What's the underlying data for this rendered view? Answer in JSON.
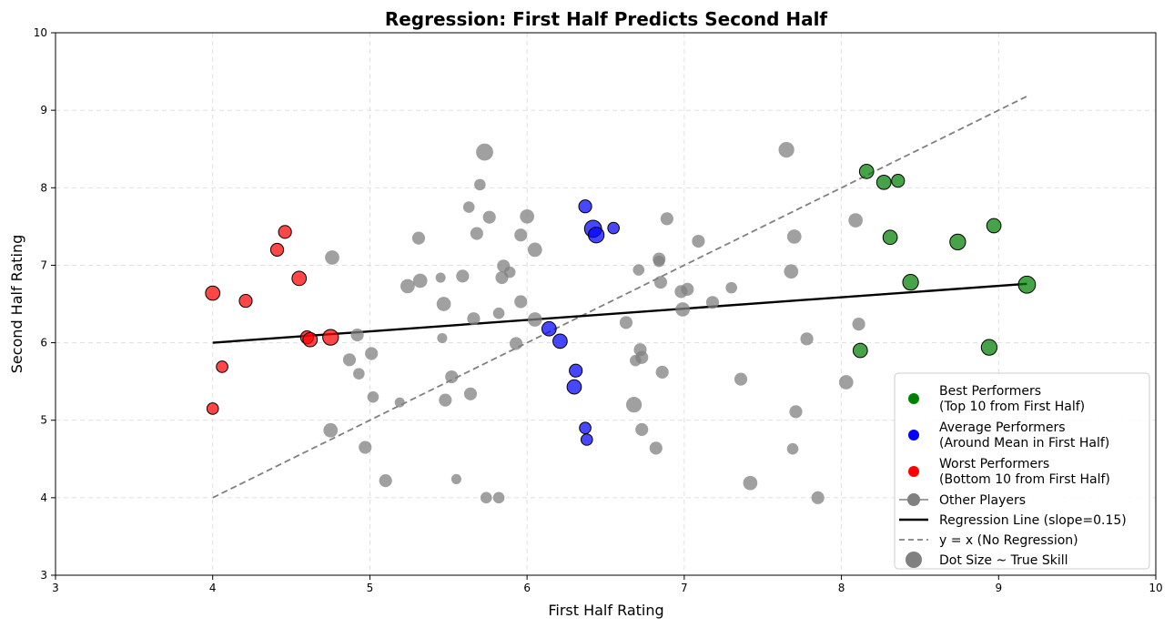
{
  "chart_data": {
    "type": "scatter",
    "title": "Regression: First Half Predicts Second Half",
    "xlabel": "First Half Rating",
    "ylabel": "Second Half Rating",
    "xlim": [
      3,
      10
    ],
    "ylim": [
      3,
      10
    ],
    "xticks": [
      3,
      4,
      5,
      6,
      7,
      8,
      9,
      10
    ],
    "yticks": [
      3,
      4,
      5,
      6,
      7,
      8,
      9,
      10
    ],
    "grid": true,
    "legend_position": "bottom-right",
    "colors": {
      "best": "#008000",
      "average": "#0000ff",
      "worst": "#ff0000",
      "other": "#808080",
      "regression": "#000000",
      "identity": "#808080"
    },
    "series": [
      {
        "name": "Best Performers (Top 10 from First Half)",
        "key": "best",
        "points": [
          {
            "x": 8.16,
            "y": 8.21,
            "skill": 3
          },
          {
            "x": 8.27,
            "y": 8.07,
            "skill": 3
          },
          {
            "x": 8.36,
            "y": 8.09,
            "skill": 2.5
          },
          {
            "x": 8.31,
            "y": 7.36,
            "skill": 3
          },
          {
            "x": 8.97,
            "y": 7.51,
            "skill": 3
          },
          {
            "x": 8.74,
            "y": 7.3,
            "skill": 3.5
          },
          {
            "x": 8.44,
            "y": 6.78,
            "skill": 3.5
          },
          {
            "x": 9.18,
            "y": 6.75,
            "skill": 4
          },
          {
            "x": 8.12,
            "y": 5.9,
            "skill": 3
          },
          {
            "x": 8.94,
            "y": 5.94,
            "skill": 3.5
          }
        ]
      },
      {
        "name": "Average Performers (Around Mean in First Half)",
        "key": "average",
        "points": [
          {
            "x": 6.37,
            "y": 7.76,
            "skill": 2.5
          },
          {
            "x": 6.42,
            "y": 7.47,
            "skill": 4
          },
          {
            "x": 6.44,
            "y": 7.39,
            "skill": 3.5
          },
          {
            "x": 6.55,
            "y": 7.48,
            "skill": 2
          },
          {
            "x": 6.14,
            "y": 6.18,
            "skill": 3
          },
          {
            "x": 6.21,
            "y": 6.02,
            "skill": 3
          },
          {
            "x": 6.31,
            "y": 5.64,
            "skill": 2.5
          },
          {
            "x": 6.3,
            "y": 5.43,
            "skill": 3
          },
          {
            "x": 6.37,
            "y": 4.9,
            "skill": 2
          },
          {
            "x": 6.38,
            "y": 4.75,
            "skill": 2
          }
        ]
      },
      {
        "name": "Worst Performers (Bottom 10 from First Half)",
        "key": "worst",
        "points": [
          {
            "x": 4.46,
            "y": 7.43,
            "skill": 2.5
          },
          {
            "x": 4.41,
            "y": 7.2,
            "skill": 2.5
          },
          {
            "x": 4.55,
            "y": 6.83,
            "skill": 3
          },
          {
            "x": 4.0,
            "y": 6.64,
            "skill": 3
          },
          {
            "x": 4.21,
            "y": 6.54,
            "skill": 2.5
          },
          {
            "x": 4.6,
            "y": 6.07,
            "skill": 2.5
          },
          {
            "x": 4.62,
            "y": 6.04,
            "skill": 3
          },
          {
            "x": 4.75,
            "y": 6.07,
            "skill": 3.5
          },
          {
            "x": 4.06,
            "y": 5.69,
            "skill": 2
          },
          {
            "x": 4.0,
            "y": 5.15,
            "skill": 2
          }
        ]
      },
      {
        "name": "Other Players",
        "key": "other",
        "points": [
          {
            "x": 5.73,
            "y": 8.46,
            "skill": 4
          },
          {
            "x": 5.7,
            "y": 8.04,
            "skill": 2
          },
          {
            "x": 5.63,
            "y": 7.75,
            "skill": 2
          },
          {
            "x": 5.76,
            "y": 7.62,
            "skill": 2.5
          },
          {
            "x": 6.0,
            "y": 7.63,
            "skill": 3
          },
          {
            "x": 5.68,
            "y": 7.41,
            "skill": 2.5
          },
          {
            "x": 5.96,
            "y": 7.39,
            "skill": 2.5
          },
          {
            "x": 5.31,
            "y": 7.35,
            "skill": 2.5
          },
          {
            "x": 6.05,
            "y": 7.2,
            "skill": 3
          },
          {
            "x": 4.76,
            "y": 7.1,
            "skill": 3
          },
          {
            "x": 5.85,
            "y": 6.99,
            "skill": 2.5
          },
          {
            "x": 5.89,
            "y": 6.91,
            "skill": 2
          },
          {
            "x": 5.59,
            "y": 6.86,
            "skill": 2.5
          },
          {
            "x": 5.45,
            "y": 6.84,
            "skill": 1.5
          },
          {
            "x": 5.84,
            "y": 6.84,
            "skill": 2.5
          },
          {
            "x": 5.32,
            "y": 6.8,
            "skill": 3
          },
          {
            "x": 5.24,
            "y": 6.73,
            "skill": 3
          },
          {
            "x": 5.96,
            "y": 6.53,
            "skill": 2.5
          },
          {
            "x": 5.47,
            "y": 6.5,
            "skill": 3
          },
          {
            "x": 5.82,
            "y": 6.38,
            "skill": 2
          },
          {
            "x": 5.66,
            "y": 6.31,
            "skill": 2.5
          },
          {
            "x": 6.05,
            "y": 6.3,
            "skill": 3
          },
          {
            "x": 4.92,
            "y": 6.1,
            "skill": 2.5
          },
          {
            "x": 5.46,
            "y": 6.06,
            "skill": 1.5
          },
          {
            "x": 5.93,
            "y": 5.99,
            "skill": 2.5
          },
          {
            "x": 5.01,
            "y": 5.86,
            "skill": 2.5
          },
          {
            "x": 4.87,
            "y": 5.78,
            "skill": 2.5
          },
          {
            "x": 4.93,
            "y": 5.6,
            "skill": 2
          },
          {
            "x": 5.52,
            "y": 5.56,
            "skill": 2.5
          },
          {
            "x": 5.64,
            "y": 5.34,
            "skill": 2.5
          },
          {
            "x": 5.02,
            "y": 5.3,
            "skill": 2
          },
          {
            "x": 5.48,
            "y": 5.26,
            "skill": 2.5
          },
          {
            "x": 5.19,
            "y": 5.23,
            "skill": 1.5
          },
          {
            "x": 4.75,
            "y": 4.87,
            "skill": 3
          },
          {
            "x": 4.97,
            "y": 4.65,
            "skill": 2.5
          },
          {
            "x": 5.1,
            "y": 4.22,
            "skill": 2.5
          },
          {
            "x": 5.55,
            "y": 4.24,
            "skill": 1.5
          },
          {
            "x": 5.74,
            "y": 4.0,
            "skill": 2
          },
          {
            "x": 5.82,
            "y": 4.0,
            "skill": 2
          },
          {
            "x": 6.89,
            "y": 7.6,
            "skill": 2.5
          },
          {
            "x": 7.09,
            "y": 7.31,
            "skill": 2.5
          },
          {
            "x": 6.84,
            "y": 7.08,
            "skill": 2.5
          },
          {
            "x": 6.84,
            "y": 7.05,
            "skill": 2
          },
          {
            "x": 6.71,
            "y": 6.94,
            "skill": 2
          },
          {
            "x": 6.85,
            "y": 6.78,
            "skill": 2.5
          },
          {
            "x": 7.02,
            "y": 6.69,
            "skill": 2.5
          },
          {
            "x": 6.98,
            "y": 6.66,
            "skill": 2.5
          },
          {
            "x": 7.3,
            "y": 6.71,
            "skill": 2
          },
          {
            "x": 7.18,
            "y": 6.52,
            "skill": 2.5
          },
          {
            "x": 6.99,
            "y": 6.43,
            "skill": 3
          },
          {
            "x": 6.63,
            "y": 6.26,
            "skill": 2.5
          },
          {
            "x": 6.72,
            "y": 5.91,
            "skill": 2.5
          },
          {
            "x": 6.73,
            "y": 5.81,
            "skill": 2.5
          },
          {
            "x": 6.69,
            "y": 5.77,
            "skill": 2
          },
          {
            "x": 6.86,
            "y": 5.62,
            "skill": 2.5
          },
          {
            "x": 6.68,
            "y": 5.2,
            "skill": 3.5
          },
          {
            "x": 6.73,
            "y": 4.88,
            "skill": 2.5
          },
          {
            "x": 6.82,
            "y": 4.64,
            "skill": 2.5
          },
          {
            "x": 7.65,
            "y": 8.49,
            "skill": 3.5
          },
          {
            "x": 8.09,
            "y": 7.58,
            "skill": 3
          },
          {
            "x": 7.7,
            "y": 7.37,
            "skill": 3
          },
          {
            "x": 7.68,
            "y": 6.92,
            "skill": 3
          },
          {
            "x": 8.11,
            "y": 6.24,
            "skill": 2.5
          },
          {
            "x": 7.78,
            "y": 6.05,
            "skill": 2.5
          },
          {
            "x": 7.36,
            "y": 5.53,
            "skill": 2.5
          },
          {
            "x": 8.03,
            "y": 5.49,
            "skill": 3
          },
          {
            "x": 7.71,
            "y": 5.11,
            "skill": 2.5
          },
          {
            "x": 7.69,
            "y": 4.63,
            "skill": 2
          },
          {
            "x": 7.42,
            "y": 4.19,
            "skill": 3
          },
          {
            "x": 7.85,
            "y": 4.0,
            "skill": 2.5
          }
        ]
      }
    ],
    "regression_line": {
      "x": [
        4.0,
        9.18
      ],
      "y": [
        6.0,
        6.76
      ],
      "slope": 0.15
    },
    "identity_line": {
      "x": [
        4.0,
        9.18
      ],
      "y": [
        4.0,
        9.18
      ]
    },
    "legend": [
      {
        "kind": "dot",
        "color_key": "best",
        "label": "Best Performers",
        "sublabel": "(Top 10 from First Half)"
      },
      {
        "kind": "dot",
        "color_key": "average",
        "label": "Average Performers",
        "sublabel": "(Around Mean in First Half)"
      },
      {
        "kind": "dot",
        "color_key": "worst",
        "label": "Worst Performers",
        "sublabel": "(Bottom 10 from First Half)"
      },
      {
        "kind": "line-dot",
        "color_key": "other",
        "label": "Other Players"
      },
      {
        "kind": "solid-line",
        "color_key": "regression",
        "label": "Regression Line (slope=0.15)"
      },
      {
        "kind": "dashed-line",
        "color_key": "identity",
        "label": "y = x (No Regression)"
      },
      {
        "kind": "big-dot",
        "color_key": "other",
        "label": "Dot Size ~ True Skill"
      }
    ]
  }
}
